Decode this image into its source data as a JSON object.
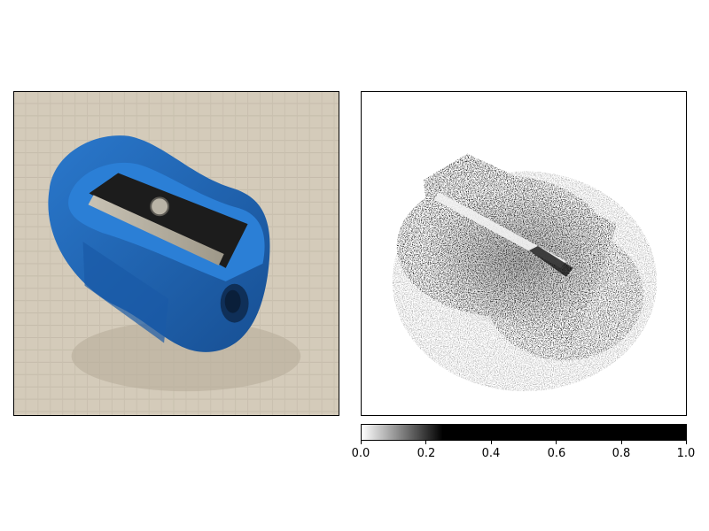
{
  "photo": {
    "subject_icon": "pencil-sharpener-icon",
    "body_color": "#1f63b0",
    "background_color": "#d6cdbd"
  },
  "saliency_map": {
    "colormap": "gray_r"
  },
  "colorbar": {
    "min": 0.0,
    "max": 1.0,
    "saturation_level": 0.25,
    "tick_labels": [
      "0.0",
      "0.2",
      "0.4",
      "0.6",
      "0.8",
      "1.0"
    ]
  }
}
